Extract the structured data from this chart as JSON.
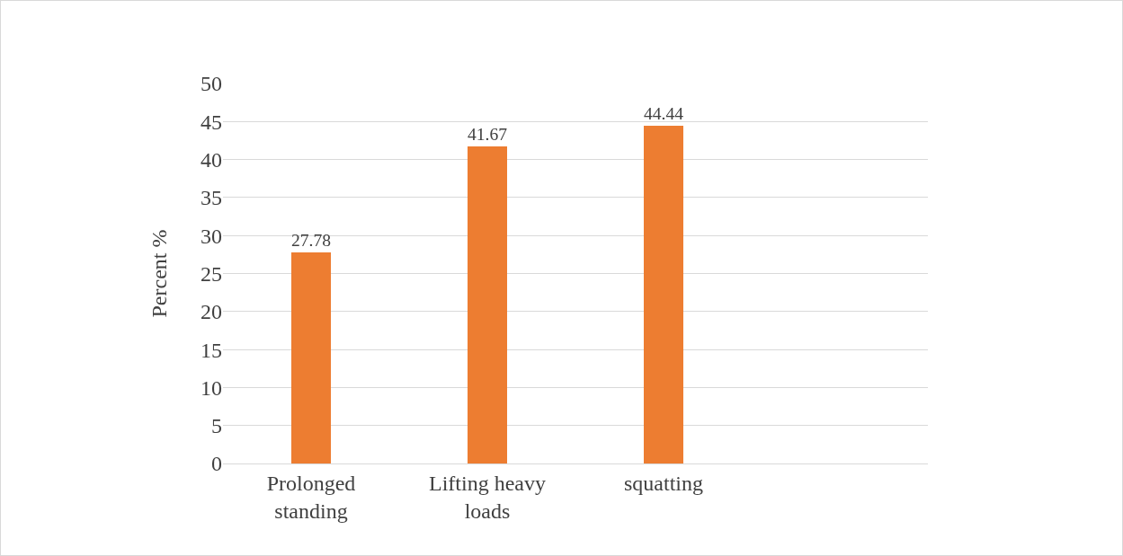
{
  "chart_data": {
    "type": "bar",
    "ylabel": "Percent %",
    "categories": [
      "Prolonged standing",
      "Lifting heavy loads",
      "squatting",
      null
    ],
    "values": [
      27.78,
      41.67,
      44.44,
      null
    ],
    "color": "#ed7d31",
    "ylim": [
      0,
      50
    ],
    "yticks": [
      0,
      5,
      10,
      15,
      20,
      25,
      30,
      35,
      40,
      45,
      50
    ],
    "grid": "y",
    "data_labels": true,
    "legend": false
  }
}
